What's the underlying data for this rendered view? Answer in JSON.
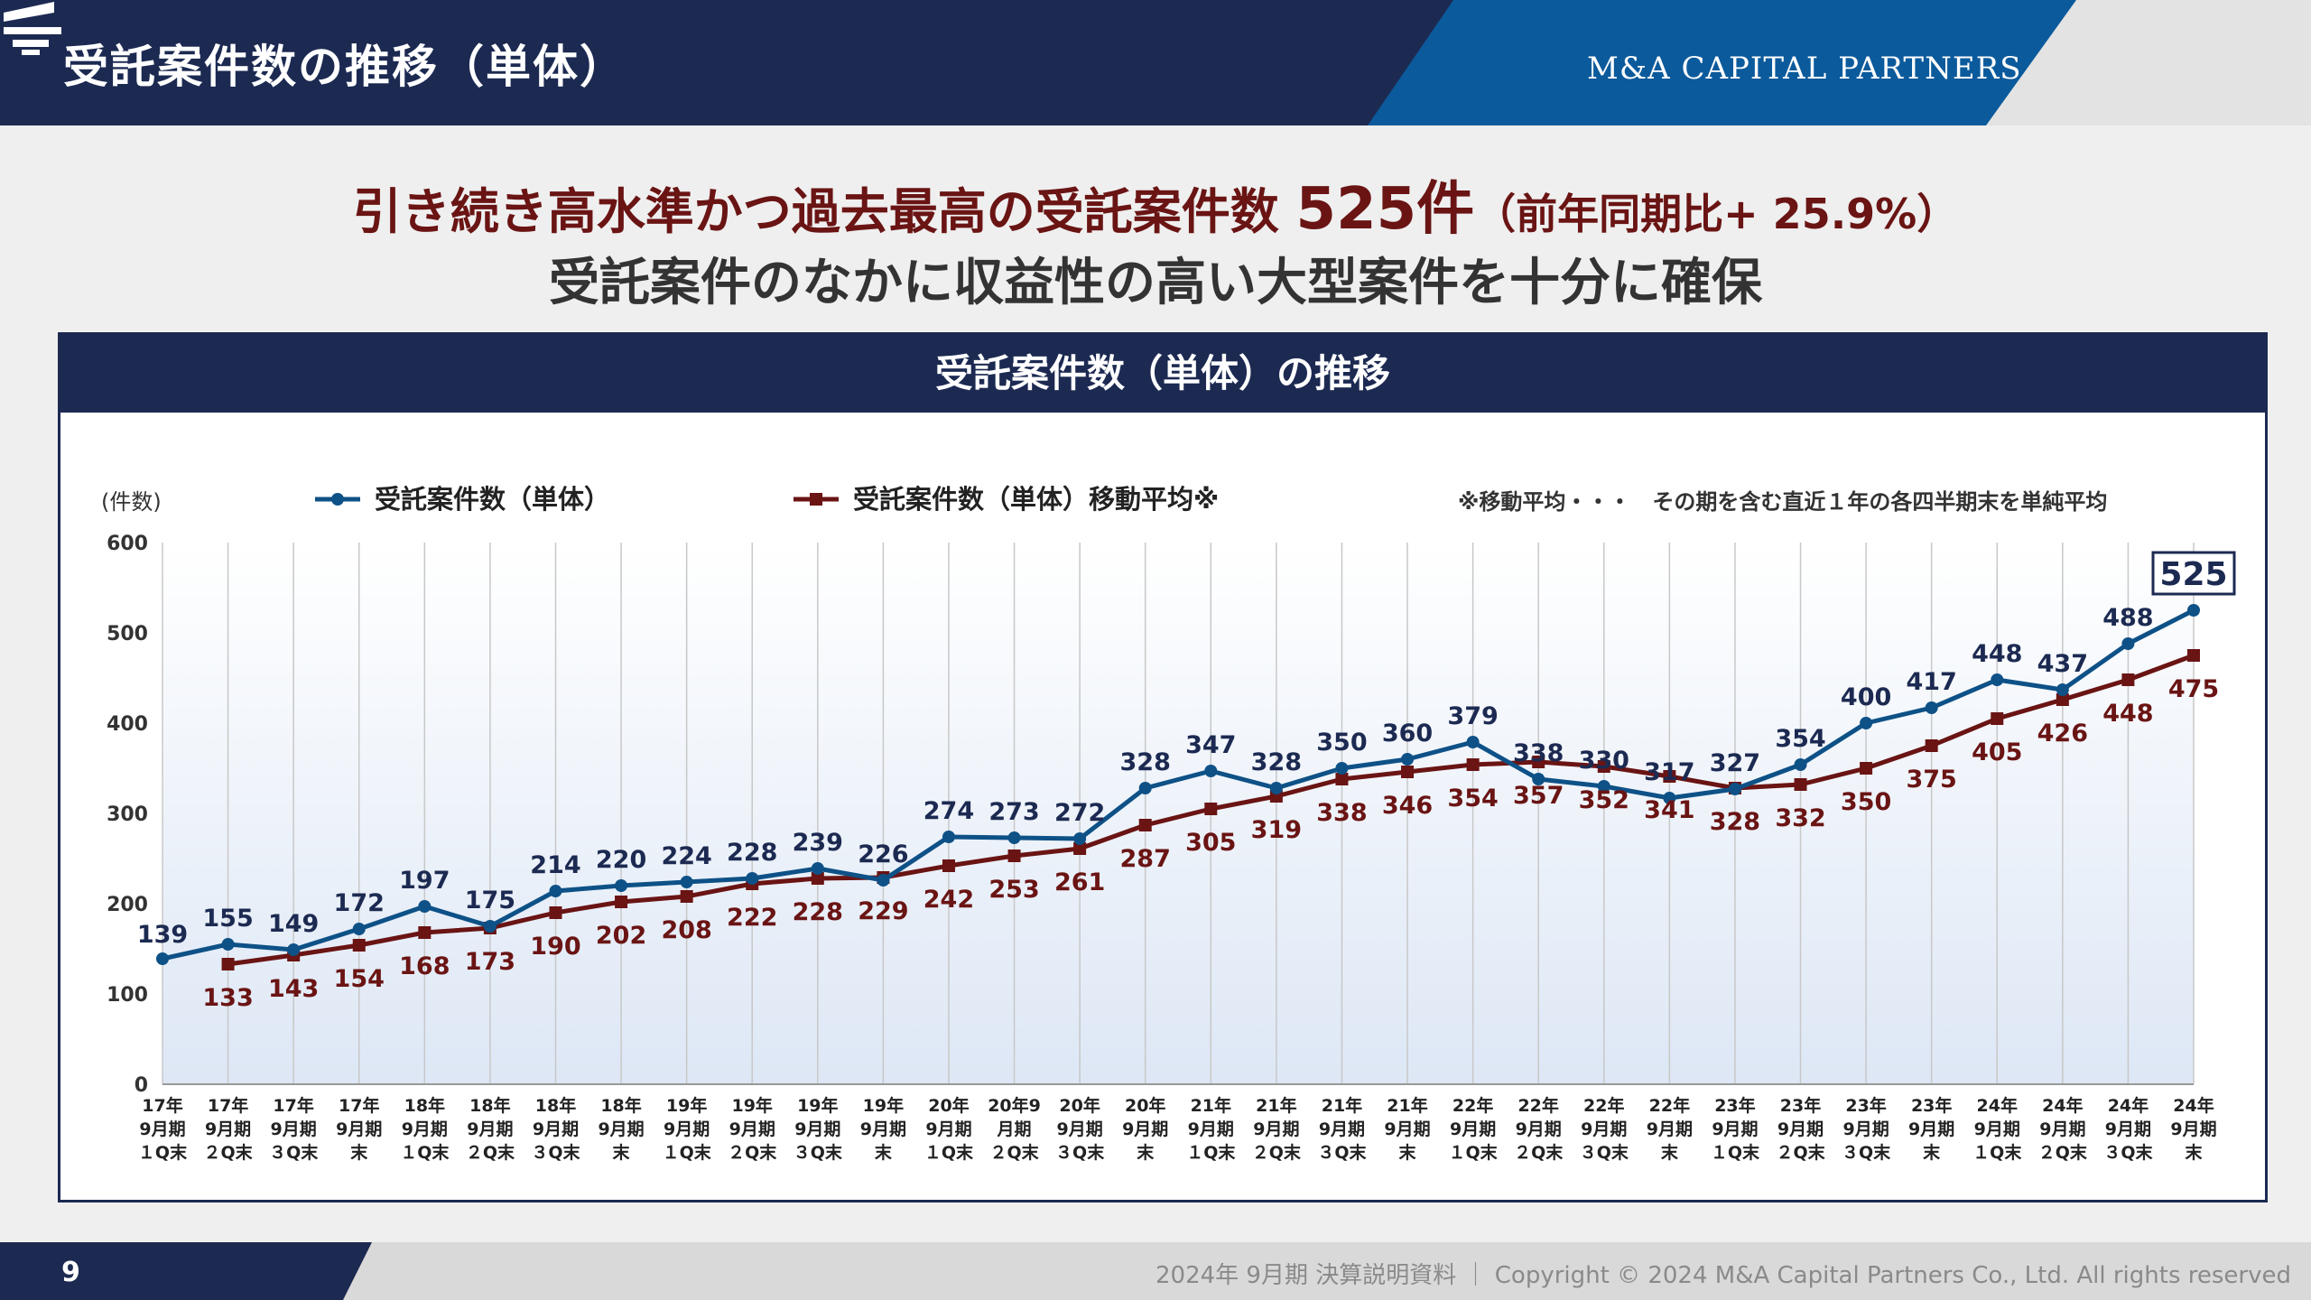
{
  "header": {
    "title": "受託案件数の推移（単体）",
    "brand": "M&A CAPITAL PARTNERS",
    "logo_icon": "mcp-logo-icon"
  },
  "headline": {
    "line1_a": "引き続き高水準かつ過去最高の受託案件数",
    "line1_b": "525件",
    "line1_c": "（前年同期比+ 25.9%）",
    "line2": "受託案件のなかに収益性の高い大型案件を十分に確保"
  },
  "panel": {
    "title": "受託案件数（単体）の推移"
  },
  "footer": {
    "page": "9",
    "copyright": "2024年 9月期 決算説明資料 ｜ Copyright © 2024 M&A Capital Partners Co., Ltd. All rights reserved"
  },
  "colors": {
    "navy": "#1c2a52",
    "blue_series": "#0e5187",
    "maroon_series": "#6a1414",
    "accent_blue": "#0b5a9c"
  },
  "chart_data": {
    "type": "line",
    "unit_label": "(件数)",
    "note": "※移動平均・・・　その期を含む直近１年の各四半期末を単純平均",
    "ylim": [
      0,
      600
    ],
    "yticks": [
      0,
      100,
      200,
      300,
      400,
      500,
      600
    ],
    "grid": "vertical",
    "legend_position": "top",
    "highlight": "525",
    "categories": [
      [
        "17年",
        "9月期",
        "１Q末"
      ],
      [
        "17年",
        "9月期",
        "２Q末"
      ],
      [
        "17年",
        "9月期",
        "３Q末"
      ],
      [
        "17年",
        "9月期",
        "末"
      ],
      [
        "18年",
        "9月期",
        "１Q末"
      ],
      [
        "18年",
        "9月期",
        "２Q末"
      ],
      [
        "18年",
        "9月期",
        "３Q末"
      ],
      [
        "18年",
        "9月期",
        "末"
      ],
      [
        "19年",
        "9月期",
        "１Q末"
      ],
      [
        "19年",
        "9月期",
        "２Q末"
      ],
      [
        "19年",
        "9月期",
        "３Q末"
      ],
      [
        "19年",
        "9月期",
        "末"
      ],
      [
        "20年",
        "9月期",
        "１Q末"
      ],
      [
        "20年9",
        "月期",
        "２Q末"
      ],
      [
        "20年",
        "9月期",
        "３Q末"
      ],
      [
        "20年",
        "9月期",
        "末"
      ],
      [
        "21年",
        "9月期",
        "１Q末"
      ],
      [
        "21年",
        "9月期",
        "２Q末"
      ],
      [
        "21年",
        "9月期",
        "３Q末"
      ],
      [
        "21年",
        "9月期",
        "末"
      ],
      [
        "22年",
        "9月期",
        "１Q末"
      ],
      [
        "22年",
        "9月期",
        "２Q末"
      ],
      [
        "22年",
        "9月期",
        "３Q末"
      ],
      [
        "22年",
        "9月期",
        "末"
      ],
      [
        "23年",
        "9月期",
        "１Q末"
      ],
      [
        "23年",
        "9月期",
        "２Q末"
      ],
      [
        "23年",
        "9月期",
        "３Q末"
      ],
      [
        "23年",
        "9月期",
        "末"
      ],
      [
        "24年",
        "9月期",
        "１Q末"
      ],
      [
        "24年",
        "9月期",
        "２Q末"
      ],
      [
        "24年",
        "9月期",
        "３Q末"
      ],
      [
        "24年",
        "9月期",
        "末"
      ]
    ],
    "series": [
      {
        "name": "受託案件数（単体）",
        "color": "#0e5187",
        "marker": "circle",
        "values": [
          139,
          155,
          149,
          172,
          197,
          175,
          214,
          220,
          224,
          228,
          239,
          226,
          274,
          273,
          272,
          328,
          347,
          328,
          350,
          360,
          379,
          338,
          330,
          317,
          327,
          354,
          400,
          417,
          448,
          437,
          488,
          525
        ]
      },
      {
        "name": "受託案件数（単体）移動平均※",
        "color": "#6a1414",
        "marker": "square",
        "values": [
          null,
          133,
          143,
          154,
          168,
          173,
          190,
          202,
          208,
          222,
          228,
          229,
          242,
          253,
          261,
          287,
          305,
          319,
          338,
          346,
          354,
          357,
          352,
          341,
          328,
          332,
          350,
          375,
          405,
          426,
          448,
          475
        ]
      }
    ]
  }
}
